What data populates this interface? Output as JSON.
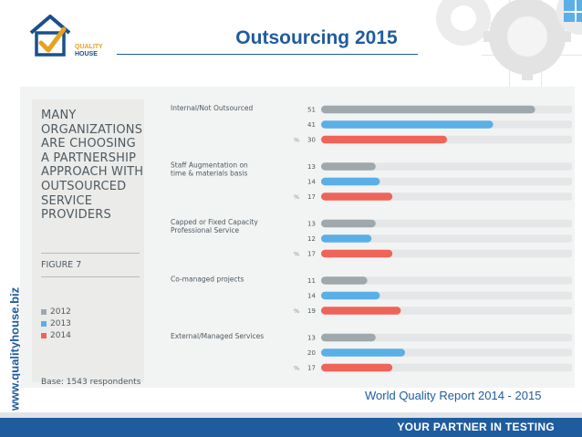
{
  "header": {
    "title": "Outsourcing 2015",
    "logo_line1": "QUALITY",
    "logo_line2": "HOUSE"
  },
  "side_url": "www.qualityhouse.biz",
  "figure": {
    "heading_lines": [
      "MANY",
      "ORGANIZATIONS",
      "ARE CHOOSING",
      "A PARTNERSHIP",
      "APPROACH WITH",
      "OUTSOURCED",
      "SERVICE PROVIDERS"
    ],
    "figure_label": "FIGURE 7",
    "base_note": "Base: 1543 respondents"
  },
  "chart_data": {
    "type": "bar",
    "orientation": "horizontal",
    "categories": [
      "Internal/Not Outsourced",
      "Staff Augmentation on time & materials basis",
      "Capped or Fixed Capacity Professional Service",
      "Co-managed projects",
      "External/Managed Services"
    ],
    "category_lines": [
      [
        "Internal/Not Outsourced"
      ],
      [
        "Staff Augmentation on",
        "time & materials basis"
      ],
      [
        "Capped or Fixed Capacity",
        "Professional Service"
      ],
      [
        "Co-managed projects"
      ],
      [
        "External/Managed Services"
      ]
    ],
    "series": [
      {
        "name": "2012",
        "color": "#9ea8ad",
        "values": [
          51,
          13,
          13,
          11,
          13
        ]
      },
      {
        "name": "2013",
        "color": "#5aafe6",
        "values": [
          41,
          14,
          12,
          14,
          20
        ]
      },
      {
        "name": "2014",
        "color": "#ef6459",
        "values": [
          30,
          17,
          17,
          19,
          17
        ]
      }
    ],
    "unit_marker": "%",
    "legend_position": "left",
    "grid": false
  },
  "source": "World Quality Report 2014 - 2015",
  "footer": {
    "tagline": "YOUR PARTNER IN TESTING"
  }
}
